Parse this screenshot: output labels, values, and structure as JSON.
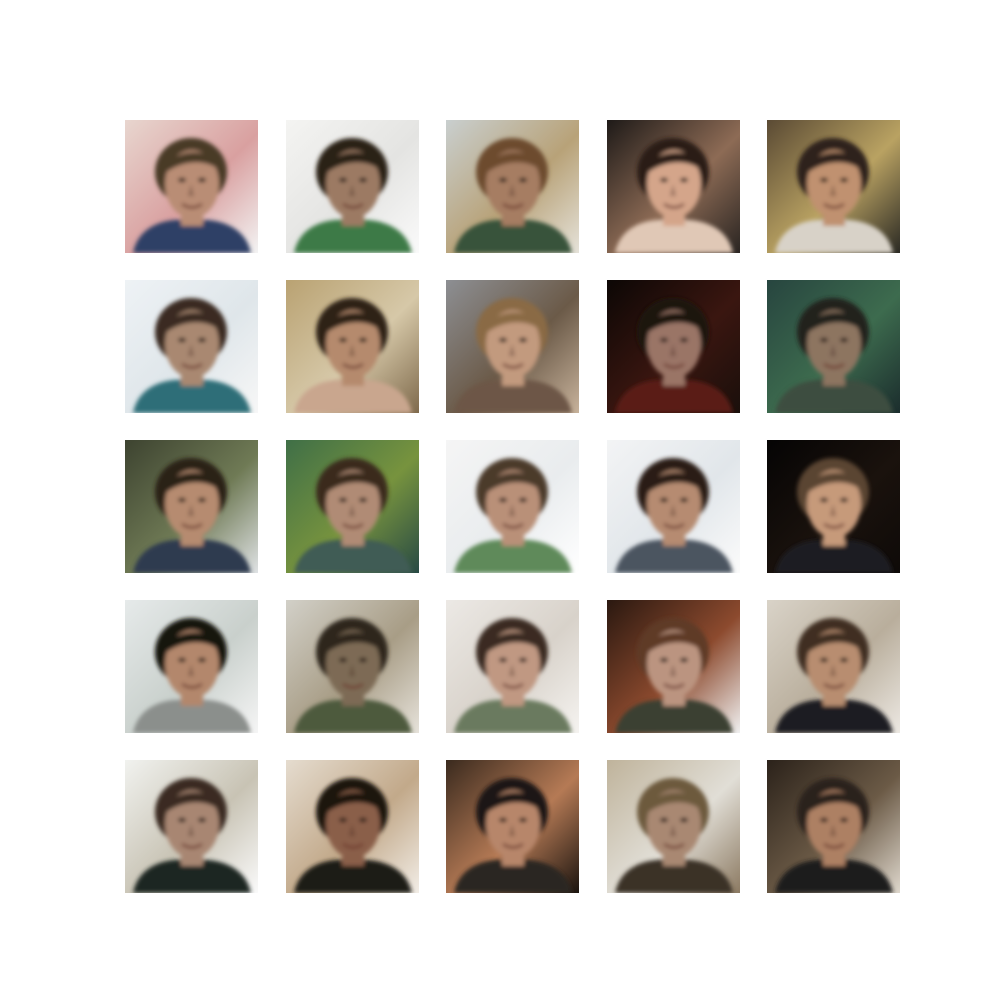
{
  "figure": {
    "rows": 5,
    "columns": 5,
    "background": "#ffffff"
  },
  "tiles": [
    {
      "row": 1,
      "col": 1,
      "background": [
        "#e8d6cf",
        "#d9a0a0",
        "#f3f3f3"
      ],
      "hair": "#4a3a26",
      "skin": "#b98d74",
      "clothing": "#2f3f66"
    },
    {
      "row": 1,
      "col": 2,
      "background": [
        "#f4f4f2",
        "#e4e4e2",
        "#fafafa"
      ],
      "hair": "#2c2118",
      "skin": "#9c7a63",
      "clothing": "#3d7a47"
    },
    {
      "row": 1,
      "col": 3,
      "background": [
        "#c9cfcf",
        "#b8a278",
        "#e5e2d9"
      ],
      "hair": "#6d4c2f",
      "skin": "#a67d62",
      "clothing": "#38523b"
    },
    {
      "row": 1,
      "col": 4,
      "background": [
        "#1e1a18",
        "#8d6b55",
        "#2a2522"
      ],
      "hair": "#2a1f18",
      "skin": "#d4a58a",
      "clothing": "#e0c8b6"
    },
    {
      "row": 1,
      "col": 5,
      "background": [
        "#5a4a34",
        "#b9a262",
        "#2b2a24"
      ],
      "hair": "#2d231a",
      "skin": "#c0916f",
      "clothing": "#d8d2c8"
    },
    {
      "row": 2,
      "col": 1,
      "background": [
        "#eef2f5",
        "#dfe6ea",
        "#f7f7f7"
      ],
      "hair": "#3a2c22",
      "skin": "#a98871",
      "clothing": "#2f6e78"
    },
    {
      "row": 2,
      "col": 2,
      "background": [
        "#b9a272",
        "#d6c8a8",
        "#7f6a4c"
      ],
      "hair": "#2e2218",
      "skin": "#b58a6d",
      "clothing": "#c9a68e"
    },
    {
      "row": 2,
      "col": 3,
      "background": [
        "#8d8f93",
        "#6b5a48",
        "#c7b29b"
      ],
      "hair": "#8a6a44",
      "skin": "#c29a7e",
      "clothing": "#6d5746"
    },
    {
      "row": 2,
      "col": 4,
      "background": [
        "#0c0705",
        "#3a1610",
        "#1a0f0b"
      ],
      "hair": "#1f140e",
      "skin": "#9a7466",
      "clothing": "#5a1c16"
    },
    {
      "row": 2,
      "col": 5,
      "background": [
        "#27453f",
        "#3d6b4e",
        "#1b2d2d"
      ],
      "hair": "#22221e",
      "skin": "#8d7461",
      "clothing": "#3c4d3f"
    },
    {
      "row": 3,
      "col": 1,
      "background": [
        "#3d4330",
        "#6f7a55",
        "#dfe2e4"
      ],
      "hair": "#2a2018",
      "skin": "#b68b70",
      "clothing": "#2d3a4f"
    },
    {
      "row": 3,
      "col": 2,
      "background": [
        "#3f6f47",
        "#77933e",
        "#284a44"
      ],
      "hair": "#3b2c1f",
      "skin": "#b08b74",
      "clothing": "#3f5c55"
    },
    {
      "row": 3,
      "col": 3,
      "background": [
        "#f5f5f5",
        "#e9ecee",
        "#ffffff"
      ],
      "hair": "#4b3a2c",
      "skin": "#b99078",
      "clothing": "#5f8a5a"
    },
    {
      "row": 3,
      "col": 4,
      "background": [
        "#f3f4f5",
        "#e1e6ea",
        "#fbfbfb"
      ],
      "hair": "#2a1f18",
      "skin": "#b68b71",
      "clothing": "#4b5560"
    },
    {
      "row": 3,
      "col": 5,
      "background": [
        "#050404",
        "#1a120d",
        "#0e0a08"
      ],
      "hair": "#5a4430",
      "skin": "#c69a7a",
      "clothing": "#1e1d22"
    },
    {
      "row": 4,
      "col": 1,
      "background": [
        "#e6eaea",
        "#c9d0cc",
        "#f5f5f5"
      ],
      "hair": "#161210",
      "skin": "#b3876c",
      "clothing": "#8b8f8c"
    },
    {
      "row": 4,
      "col": 2,
      "background": [
        "#d2d0c8",
        "#a89d86",
        "#e6e2da"
      ],
      "hair": "#2e261d",
      "skin": "#7d6a55",
      "clothing": "#4e5a3e"
    },
    {
      "row": 4,
      "col": 3,
      "background": [
        "#ece9e5",
        "#d8d2ca",
        "#f5f3f0"
      ],
      "hair": "#3a2c20",
      "skin": "#c09882",
      "clothing": "#6a7a5e"
    },
    {
      "row": 4,
      "col": 4,
      "background": [
        "#2a1810",
        "#8c4a2e",
        "#f0f0f0"
      ],
      "hair": "#5e3b26",
      "skin": "#bb9480",
      "clothing": "#3b4032"
    },
    {
      "row": 4,
      "col": 5,
      "background": [
        "#d9d3c8",
        "#b9ae9c",
        "#ece8e2"
      ],
      "hair": "#3f2f22",
      "skin": "#b88d6f",
      "clothing": "#1c1c20"
    },
    {
      "row": 5,
      "col": 1,
      "background": [
        "#f1f2ef",
        "#c8c3b4",
        "#fafafa"
      ],
      "hair": "#3b2c21",
      "skin": "#a88672",
      "clothing": "#1e2524"
    },
    {
      "row": 5,
      "col": 2,
      "background": [
        "#e5dccf",
        "#c2a98a",
        "#f2ede6"
      ],
      "hair": "#1c1410",
      "skin": "#8a5f48",
      "clothing": "#1d1a18"
    },
    {
      "row": 5,
      "col": 3,
      "background": [
        "#3a2a1e",
        "#b57a55",
        "#1b140f"
      ],
      "hair": "#1e1712",
      "skin": "#b7866b",
      "clothing": "#2a2622"
    },
    {
      "row": 5,
      "col": 4,
      "background": [
        "#bfb39b",
        "#e1ded6",
        "#8c7a62"
      ],
      "hair": "#6d5a3e",
      "skin": "#a98872",
      "clothing": "#3b3026"
    },
    {
      "row": 5,
      "col": 5,
      "background": [
        "#2b221a",
        "#6b5a46",
        "#ded7cc"
      ],
      "hair": "#2c221b",
      "skin": "#ad8064",
      "clothing": "#1f1d1d"
    }
  ]
}
